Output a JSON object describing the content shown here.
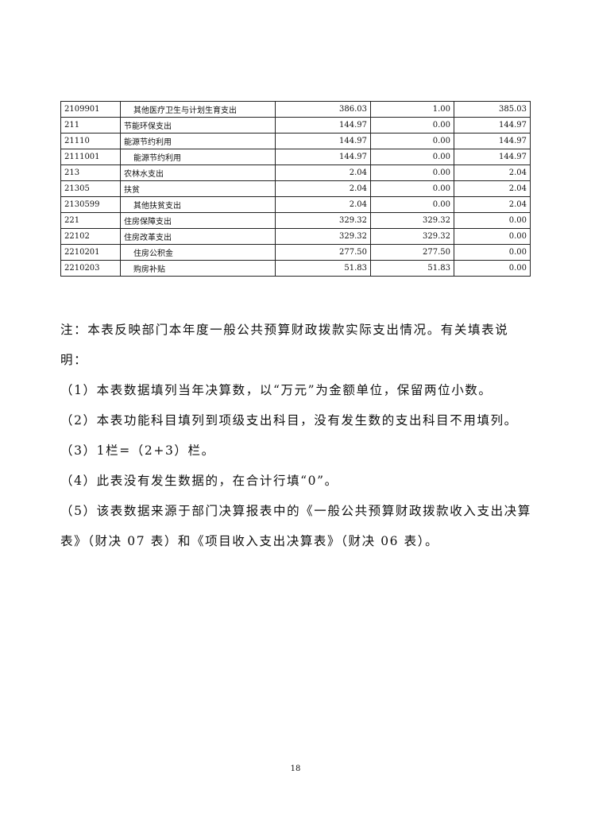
{
  "table": {
    "rows": [
      {
        "code": "2109901",
        "name": "其他医疗卫生与计划生育支出",
        "indent": true,
        "total": "386.03",
        "basic": "1.00",
        "project": "385.03"
      },
      {
        "code": "211",
        "name": "节能环保支出",
        "indent": false,
        "total": "144.97",
        "basic": "0.00",
        "project": "144.97"
      },
      {
        "code": "21110",
        "name": "能源节约利用",
        "indent": false,
        "total": "144.97",
        "basic": "0.00",
        "project": "144.97"
      },
      {
        "code": "2111001",
        "name": "能源节约利用",
        "indent": true,
        "total": "144.97",
        "basic": "0.00",
        "project": "144.97"
      },
      {
        "code": "213",
        "name": "农林水支出",
        "indent": false,
        "total": "2.04",
        "basic": "0.00",
        "project": "2.04"
      },
      {
        "code": "21305",
        "name": "扶贫",
        "indent": false,
        "total": "2.04",
        "basic": "0.00",
        "project": "2.04"
      },
      {
        "code": "2130599",
        "name": "其他扶贫支出",
        "indent": true,
        "total": "2.04",
        "basic": "0.00",
        "project": "2.04"
      },
      {
        "code": "221",
        "name": "住房保障支出",
        "indent": false,
        "total": "329.32",
        "basic": "329.32",
        "project": "0.00"
      },
      {
        "code": "22102",
        "name": "住房改革支出",
        "indent": false,
        "total": "329.32",
        "basic": "329.32",
        "project": "0.00"
      },
      {
        "code": "2210201",
        "name": "住房公积金",
        "indent": true,
        "total": "277.50",
        "basic": "277.50",
        "project": "0.00"
      },
      {
        "code": "2210203",
        "name": "购房补贴",
        "indent": true,
        "total": "51.83",
        "basic": "51.83",
        "project": "0.00"
      }
    ]
  },
  "notes": [
    "注：本表反映部门本年度一般公共预算财政拨款实际支出情况。有关填表说明：",
    "（1）本表数据填列当年决算数，以“万元”为金额单位，保留两位小数。",
    "（2）本表功能科目填列到项级支出科目，没有发生数的支出科目不用填列。",
    "（3）1栏=（2+3）栏。",
    "（4）此表没有发生数据的，在合计行填“0”。",
    "（5）该表数据来源于部门决算报表中的《一般公共预算财政拨款收入支出决算表》（财决 07 表）和《项目收入支出决算表》（财决 06 表）。"
  ],
  "page_number": "18"
}
